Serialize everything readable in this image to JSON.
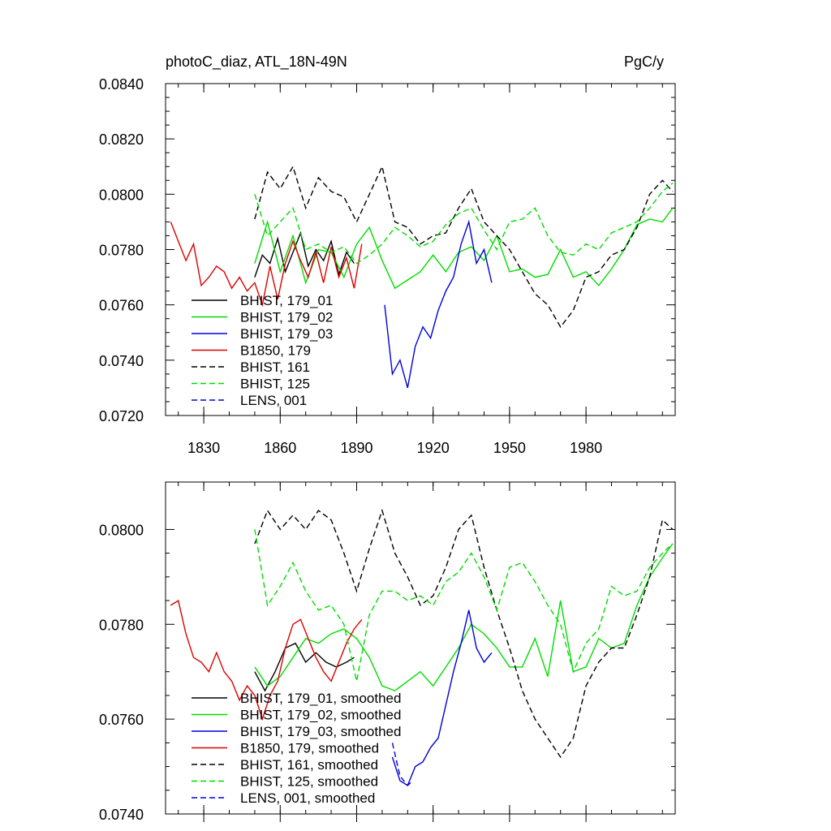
{
  "chart_data": [
    {
      "type": "line",
      "title_left": "photoC_diaz, ATL_18N-49N",
      "title_right": "PgC/y",
      "xlabel": "",
      "ylabel": "",
      "xlim": [
        1815,
        2015
      ],
      "ylim": [
        0.072,
        0.084
      ],
      "xticks": [
        1830,
        1860,
        1890,
        1920,
        1950,
        1980
      ],
      "xtick_labels": [
        "1830",
        "1860",
        "1890",
        "1920",
        "1950",
        "1980"
      ],
      "yticks": [
        0.072,
        0.074,
        0.076,
        0.078,
        0.08,
        0.082,
        0.084
      ],
      "ytick_labels": [
        "0.0720",
        "0.0740",
        "0.0760",
        "0.0780",
        "0.0800",
        "0.0820",
        "0.0840"
      ],
      "legend_position": "bottom-left",
      "series": [
        {
          "name": "BHIST, 179_01",
          "color": "#000000",
          "dash": "solid",
          "x": [
            1850,
            1853,
            1856,
            1859,
            1862,
            1865,
            1868,
            1871,
            1874,
            1877,
            1880,
            1883,
            1886,
            1889
          ],
          "values": [
            0.077,
            0.0778,
            0.0775,
            0.0784,
            0.0772,
            0.0779,
            0.0786,
            0.0774,
            0.078,
            0.0776,
            0.0783,
            0.0771,
            0.0779,
            0.0775
          ]
        },
        {
          "name": "BHIST, 179_02",
          "color": "#00dd00",
          "dash": "solid",
          "x": [
            1850,
            1855,
            1860,
            1865,
            1870,
            1875,
            1880,
            1885,
            1890,
            1895,
            1900,
            1905,
            1910,
            1915,
            1920,
            1925,
            1930,
            1935,
            1940,
            1945,
            1950,
            1955,
            1960,
            1965,
            1970,
            1975,
            1980,
            1985,
            1990,
            1995,
            2000,
            2005,
            2010,
            2014
          ],
          "values": [
            0.0775,
            0.079,
            0.0772,
            0.0785,
            0.0768,
            0.078,
            0.0779,
            0.077,
            0.0782,
            0.0788,
            0.0776,
            0.0766,
            0.0769,
            0.0772,
            0.0778,
            0.0772,
            0.0779,
            0.0781,
            0.0776,
            0.0785,
            0.0772,
            0.0773,
            0.077,
            0.0771,
            0.078,
            0.077,
            0.0772,
            0.0767,
            0.0773,
            0.078,
            0.0789,
            0.0791,
            0.079,
            0.0795
          ]
        },
        {
          "name": "BHIST, 179_03",
          "color": "#0000dd",
          "dash": "solid",
          "x": [
            1901,
            1904,
            1907,
            1910,
            1913,
            1916,
            1919,
            1922,
            1925,
            1928,
            1931,
            1934,
            1937,
            1940,
            1943
          ],
          "values": [
            0.076,
            0.0735,
            0.074,
            0.073,
            0.0745,
            0.0752,
            0.0748,
            0.0758,
            0.0765,
            0.077,
            0.0782,
            0.079,
            0.0775,
            0.078,
            0.0768
          ]
        },
        {
          "name": "B1850, 179",
          "color": "#dd0000",
          "dash": "solid",
          "x": [
            1817,
            1820,
            1823,
            1826,
            1829,
            1832,
            1835,
            1838,
            1841,
            1844,
            1847,
            1850,
            1853,
            1856,
            1859,
            1862,
            1865,
            1868,
            1871,
            1874,
            1877,
            1880,
            1883,
            1886,
            1889,
            1892
          ],
          "values": [
            0.079,
            0.0783,
            0.0776,
            0.0782,
            0.0767,
            0.077,
            0.0774,
            0.0772,
            0.0766,
            0.077,
            0.0765,
            0.0768,
            0.076,
            0.0774,
            0.0762,
            0.0775,
            0.0783,
            0.0776,
            0.077,
            0.0779,
            0.0768,
            0.0781,
            0.077,
            0.0777,
            0.0766,
            0.0782
          ]
        },
        {
          "name": "BHIST, 161",
          "color": "#000000",
          "dash": "dashed",
          "x": [
            1850,
            1855,
            1860,
            1865,
            1870,
            1875,
            1880,
            1885,
            1890,
            1895,
            1900,
            1905,
            1910,
            1915,
            1920,
            1925,
            1930,
            1935,
            1940,
            1945,
            1950,
            1955,
            1960,
            1965,
            1970,
            1975,
            1980,
            1985,
            1990,
            1995,
            2000,
            2005,
            2010,
            2014
          ],
          "values": [
            0.0791,
            0.0808,
            0.0802,
            0.081,
            0.0795,
            0.0806,
            0.0801,
            0.0799,
            0.079,
            0.08,
            0.081,
            0.079,
            0.0788,
            0.0782,
            0.0785,
            0.0786,
            0.0795,
            0.0802,
            0.079,
            0.0785,
            0.078,
            0.0772,
            0.0764,
            0.076,
            0.0752,
            0.0758,
            0.077,
            0.0772,
            0.0778,
            0.078,
            0.0788,
            0.08,
            0.0805,
            0.0801
          ]
        },
        {
          "name": "BHIST, 125",
          "color": "#00dd00",
          "dash": "dashed",
          "x": [
            1850,
            1855,
            1860,
            1865,
            1870,
            1875,
            1880,
            1885,
            1890,
            1895,
            1900,
            1905,
            1910,
            1915,
            1920,
            1925,
            1930,
            1935,
            1940,
            1945,
            1950,
            1955,
            1960,
            1965,
            1970,
            1975,
            1980,
            1985,
            1990,
            1995,
            2000,
            2005,
            2010,
            2014
          ],
          "values": [
            0.08,
            0.0785,
            0.079,
            0.0795,
            0.078,
            0.0782,
            0.0779,
            0.0781,
            0.0775,
            0.0778,
            0.0782,
            0.0788,
            0.0785,
            0.0781,
            0.0783,
            0.0789,
            0.0793,
            0.0795,
            0.0787,
            0.078,
            0.079,
            0.0791,
            0.0795,
            0.0785,
            0.0779,
            0.0778,
            0.0782,
            0.078,
            0.0786,
            0.0788,
            0.079,
            0.0795,
            0.0801,
            0.0804
          ]
        },
        {
          "name": "LENS, 001",
          "color": "#0000dd",
          "dash": "dashed",
          "x": [],
          "values": []
        }
      ]
    },
    {
      "type": "line",
      "title_left": "",
      "title_right": "",
      "xlabel": "",
      "ylabel": "",
      "xlim": [
        1815,
        2015
      ],
      "ylim": [
        0.074,
        0.081
      ],
      "xticks": [
        1830,
        1860,
        1890,
        1920,
        1950,
        1980
      ],
      "xtick_labels": [],
      "yticks": [
        0.074,
        0.076,
        0.078,
        0.08
      ],
      "ytick_labels": [
        "0.0740",
        "0.0760",
        "0.0780",
        "0.0800"
      ],
      "legend_position": "bottom-left",
      "series": [
        {
          "name": "BHIST, 179_01, smoothed",
          "color": "#000000",
          "dash": "solid",
          "x": [
            1850,
            1854,
            1858,
            1862,
            1866,
            1870,
            1874,
            1878,
            1882,
            1886,
            1889
          ],
          "values": [
            0.077,
            0.0766,
            0.077,
            0.0775,
            0.0776,
            0.0772,
            0.0774,
            0.0772,
            0.0771,
            0.0772,
            0.0773
          ]
        },
        {
          "name": "BHIST, 179_02, smoothed",
          "color": "#00dd00",
          "dash": "solid",
          "x": [
            1850,
            1855,
            1860,
            1865,
            1870,
            1875,
            1880,
            1885,
            1890,
            1895,
            1900,
            1905,
            1910,
            1915,
            1920,
            1925,
            1930,
            1935,
            1940,
            1945,
            1950,
            1955,
            1960,
            1965,
            1970,
            1975,
            1980,
            1985,
            1990,
            1995,
            2000,
            2005,
            2010,
            2014
          ],
          "values": [
            0.0771,
            0.0767,
            0.0769,
            0.0773,
            0.0777,
            0.0776,
            0.0778,
            0.0779,
            0.0777,
            0.0773,
            0.0767,
            0.0766,
            0.0768,
            0.077,
            0.0767,
            0.0771,
            0.0775,
            0.078,
            0.0778,
            0.0775,
            0.0771,
            0.0771,
            0.0777,
            0.0769,
            0.0785,
            0.077,
            0.0771,
            0.0777,
            0.0775,
            0.0776,
            0.0784,
            0.079,
            0.0794,
            0.0797
          ]
        },
        {
          "name": "BHIST, 179_03, smoothed",
          "color": "#0000dd",
          "dash": "solid",
          "x": [
            1904,
            1907,
            1910,
            1913,
            1916,
            1919,
            1922,
            1925,
            1928,
            1931,
            1934,
            1937,
            1940,
            1943
          ],
          "values": [
            0.0752,
            0.0747,
            0.0746,
            0.075,
            0.0751,
            0.0754,
            0.0756,
            0.0763,
            0.077,
            0.0776,
            0.0783,
            0.0775,
            0.0772,
            0.0774
          ]
        },
        {
          "name": "B1850, 179, smoothed",
          "color": "#dd0000",
          "dash": "solid",
          "x": [
            1817,
            1820,
            1823,
            1826,
            1829,
            1832,
            1835,
            1838,
            1841,
            1844,
            1847,
            1850,
            1853,
            1856,
            1859,
            1862,
            1865,
            1868,
            1871,
            1874,
            1877,
            1880,
            1883,
            1886,
            1889,
            1892
          ],
          "values": [
            0.0784,
            0.0785,
            0.0778,
            0.0773,
            0.0772,
            0.077,
            0.0774,
            0.077,
            0.0768,
            0.0764,
            0.0767,
            0.0765,
            0.076,
            0.0765,
            0.0768,
            0.0775,
            0.078,
            0.0781,
            0.0777,
            0.0773,
            0.077,
            0.0768,
            0.0772,
            0.0776,
            0.0779,
            0.0781
          ]
        },
        {
          "name": "BHIST, 161, smoothed",
          "color": "#000000",
          "dash": "dashed",
          "x": [
            1850,
            1855,
            1860,
            1865,
            1870,
            1875,
            1880,
            1885,
            1890,
            1895,
            1900,
            1905,
            1910,
            1915,
            1920,
            1925,
            1930,
            1935,
            1940,
            1945,
            1950,
            1955,
            1960,
            1965,
            1970,
            1975,
            1980,
            1985,
            1990,
            1995,
            2000,
            2005,
            2010,
            2014
          ],
          "values": [
            0.0797,
            0.0804,
            0.08,
            0.0803,
            0.08,
            0.0804,
            0.0802,
            0.0795,
            0.0787,
            0.0796,
            0.0804,
            0.0795,
            0.079,
            0.0784,
            0.0786,
            0.0792,
            0.08,
            0.0803,
            0.0792,
            0.0783,
            0.0775,
            0.0766,
            0.076,
            0.0756,
            0.0752,
            0.0756,
            0.0767,
            0.0772,
            0.0775,
            0.0775,
            0.0782,
            0.079,
            0.0802,
            0.08
          ]
        },
        {
          "name": "BHIST, 125, smoothed",
          "color": "#00dd00",
          "dash": "dashed",
          "x": [
            1850,
            1855,
            1860,
            1865,
            1870,
            1875,
            1880,
            1885,
            1890,
            1895,
            1900,
            1905,
            1910,
            1915,
            1920,
            1925,
            1930,
            1935,
            1940,
            1945,
            1950,
            1955,
            1960,
            1965,
            1970,
            1975,
            1980,
            1985,
            1990,
            1995,
            2000,
            2005,
            2010,
            2014
          ],
          "values": [
            0.08,
            0.0784,
            0.0788,
            0.0793,
            0.0787,
            0.0783,
            0.0784,
            0.078,
            0.0768,
            0.0782,
            0.0787,
            0.0787,
            0.0785,
            0.0786,
            0.0784,
            0.0789,
            0.0791,
            0.0795,
            0.079,
            0.0783,
            0.0792,
            0.0793,
            0.0789,
            0.0784,
            0.078,
            0.077,
            0.0776,
            0.0779,
            0.0788,
            0.0786,
            0.0787,
            0.0792,
            0.0795,
            0.0797
          ]
        },
        {
          "name": "LENS, 001, smoothed",
          "color": "#0000dd",
          "dash": "dashed",
          "x": [
            1904,
            1907,
            1910,
            1912
          ],
          "values": [
            0.0755,
            0.0748,
            0.0746,
            0.0747
          ]
        }
      ]
    }
  ]
}
